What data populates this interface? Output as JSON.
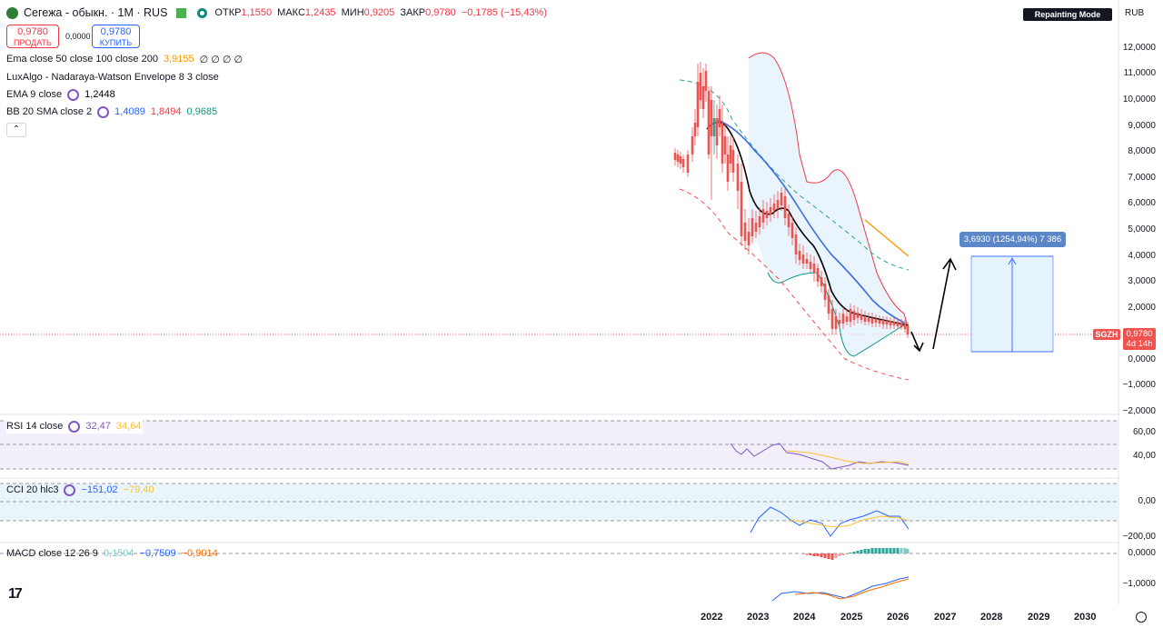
{
  "header": {
    "symbol": "Сегежа - обыкн. · 1M · RUS",
    "open_label": "ОТКР",
    "open": "1,1550",
    "high_label": "МАКС",
    "high": "1,2435",
    "low_label": "МИН",
    "low": "0,9205",
    "close_label": "ЗАКР",
    "close": "0,9780",
    "change": "−0,1785 (−15,43%)",
    "currency": "RUB",
    "repaint_badge": "Repainting Mode Enabled"
  },
  "trade": {
    "sell_price": "0,9780",
    "sell_label": "ПРОДАТЬ",
    "spread": "0,0000",
    "buy_price": "0,9780",
    "buy_label": "КУПИТЬ"
  },
  "indicators": {
    "ema_multi": {
      "label": "Ema close 50 close 100 close 200",
      "value": "3,9155",
      "extra": "∅ ∅ ∅ ∅"
    },
    "lux": {
      "label": "LuxAlgo - Nadaraya-Watson Envelope 8 3 close"
    },
    "ema9": {
      "label": "EMA 9 close",
      "value": "1,2448"
    },
    "bb": {
      "label": "BB 20 SMA close 2",
      "v1": "1,4089",
      "v2": "1,8494",
      "v3": "0,9685"
    }
  },
  "price_axis": [
    "12,0000",
    "11,0000",
    "10,0000",
    "9,0000",
    "8,0000",
    "7,0000",
    "6,0000",
    "5,0000",
    "4,0000",
    "3,0000",
    "2,0000",
    "1,0000",
    "0,0000",
    "−1,0000",
    "−2,0000"
  ],
  "last_price_tag": {
    "ticker": "SGZH",
    "price": "0,9780",
    "countdown": "4d 14h"
  },
  "measure_label": "3,6930 (1254,94%) 7 386",
  "rsi": {
    "label": "RSI 14 close",
    "v1": "32,47",
    "v2": "34,64",
    "axis": [
      "60,00",
      "40,00"
    ]
  },
  "cci": {
    "label": "CCI 20 hlc3",
    "v1": "−151,02",
    "v2": "−79,40",
    "axis": [
      "0,00",
      "−200,00"
    ]
  },
  "macd": {
    "label": "MACD close 12 26 9",
    "v1": "0,1504",
    "v2": "−0,7509",
    "v3": "−0,9014",
    "axis": [
      "0,0000",
      "−1,0000"
    ]
  },
  "years": [
    "2022",
    "2023",
    "2024",
    "2025",
    "2026",
    "2027",
    "2028",
    "2029",
    "2030"
  ],
  "colors": {
    "up": "#26a69a",
    "down": "#ef5350",
    "ema9": "#000000",
    "ema_blue": "#3b6fde",
    "bb_upper": "#f23645",
    "bb_lower": "#22ab94",
    "orange": "#ff9800",
    "purple": "#7e57c2"
  }
}
